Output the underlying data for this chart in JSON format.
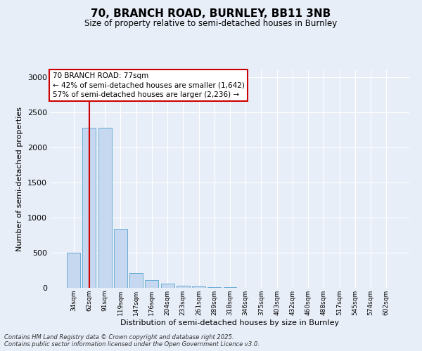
{
  "title_line1": "70, BRANCH ROAD, BURNLEY, BB11 3NB",
  "title_line2": "Size of property relative to semi-detached houses in Burnley",
  "xlabel": "Distribution of semi-detached houses by size in Burnley",
  "ylabel": "Number of semi-detached properties",
  "categories": [
    "34sqm",
    "62sqm",
    "91sqm",
    "119sqm",
    "147sqm",
    "176sqm",
    "204sqm",
    "233sqm",
    "261sqm",
    "289sqm",
    "318sqm",
    "346sqm",
    "375sqm",
    "403sqm",
    "432sqm",
    "460sqm",
    "488sqm",
    "517sqm",
    "545sqm",
    "574sqm",
    "602sqm"
  ],
  "values": [
    500,
    2280,
    2280,
    840,
    210,
    110,
    60,
    30,
    20,
    10,
    10,
    0,
    0,
    0,
    0,
    0,
    0,
    0,
    0,
    0,
    0
  ],
  "bar_color": "#c5d8ef",
  "bar_edge_color": "#6aadd5",
  "vline_position": 1.0,
  "vline_color": "#cc0000",
  "annotation_text": "70 BRANCH ROAD: 77sqm\n← 42% of semi-detached houses are smaller (1,642)\n57% of semi-detached houses are larger (2,236) →",
  "annotation_box_facecolor": "#ffffff",
  "annotation_box_edgecolor": "#cc0000",
  "ylim": [
    0,
    3100
  ],
  "yticks": [
    0,
    500,
    1000,
    1500,
    2000,
    2500,
    3000
  ],
  "footer_line1": "Contains HM Land Registry data © Crown copyright and database right 2025.",
  "footer_line2": "Contains public sector information licensed under the Open Government Licence v3.0.",
  "bg_color": "#e8eef8",
  "plot_bg_color": "#e8eef8",
  "grid_color": "#ffffff"
}
